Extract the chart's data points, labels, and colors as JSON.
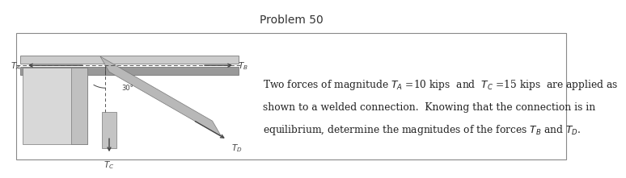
{
  "title": "Problem 50",
  "title_fontsize": 10,
  "title_color": "#333333",
  "bg_color": "#ffffff",
  "text_line1": "Two forces of magnitude $T_A$ =10 kips  and  $T_C$ =15 kips  are applied as",
  "text_line2": "shown to a welded connection.  Knowing that the connection is in",
  "text_line3": "equilibrium, determine the magnitudes of the forces $T_B$ and $T_D$.",
  "text_fontsize": 8.8,
  "label_TA": "$T_A$",
  "label_TB": "$T_B$",
  "label_TC": "$T_C$",
  "label_TD": "$T_D$",
  "angle_label": "30°",
  "gray_light": "#cccccc",
  "gray_dark": "#999999",
  "gray_medium": "#aaaaaa",
  "gray_plate": "#b8b8b8",
  "gray_block": "#d8d8d8",
  "gray_block2": "#c0c0c0",
  "gray_stem": "#c4c4c4",
  "arrow_color": "#444444",
  "dashed_color": "#555555",
  "label_fontsize": 7.5
}
